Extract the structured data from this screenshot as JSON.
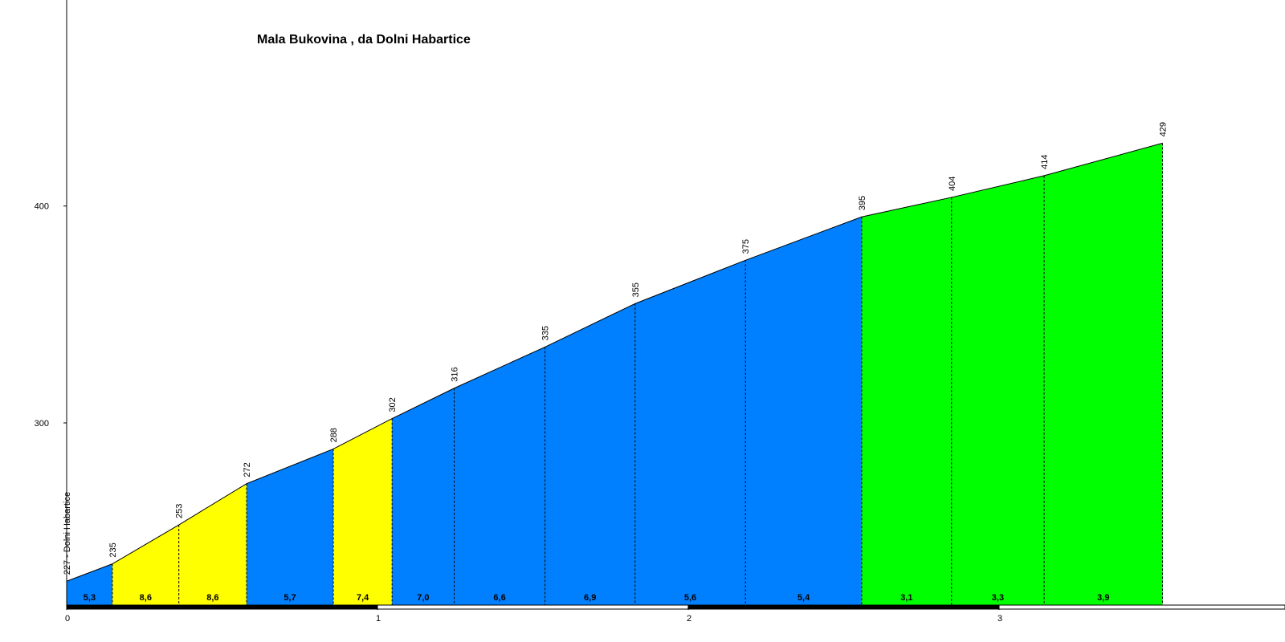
{
  "chart_data": {
    "type": "profile",
    "title": "Mala Bukovina , da Dolni Habartice",
    "x": [
      0,
      0.147,
      0.361,
      0.579,
      0.858,
      1.047,
      1.247,
      1.539,
      1.829,
      2.184,
      2.558,
      2.847,
      3.145,
      3.526
    ],
    "values": [
      227,
      235,
      253,
      272,
      288,
      302,
      316,
      335,
      355,
      375,
      395,
      404,
      414,
      429
    ],
    "value_labels": [
      "227 - Dolni Habartice",
      "235",
      "253",
      "272",
      "288",
      "302",
      "316",
      "335",
      "355",
      "375",
      "395",
      "404",
      "414",
      "429"
    ],
    "gradients": [
      5.3,
      8.6,
      8.6,
      5.7,
      7.4,
      7.0,
      6.6,
      6.9,
      5.6,
      5.4,
      3.1,
      3.3,
      3.9
    ],
    "gradient_labels": [
      "5,3",
      "8,6",
      "8,6",
      "5,7",
      "7,4",
      "7,0",
      "6,6",
      "6,9",
      "5,6",
      "5,4",
      "3,1",
      "3,3",
      "3,9"
    ],
    "gradient_colors": [
      "#0080ff",
      "#ffff00",
      "#ffff00",
      "#0080ff",
      "#ffff00",
      "#0080ff",
      "#0080ff",
      "#0080ff",
      "#0080ff",
      "#0080ff",
      "#00ff00",
      "#00ff00",
      "#00ff00"
    ],
    "xlim": [
      0,
      3.92
    ],
    "xticks": [
      0,
      1,
      2,
      3
    ],
    "ylim": [
      216,
      495
    ],
    "yticks": [
      300,
      400
    ]
  }
}
